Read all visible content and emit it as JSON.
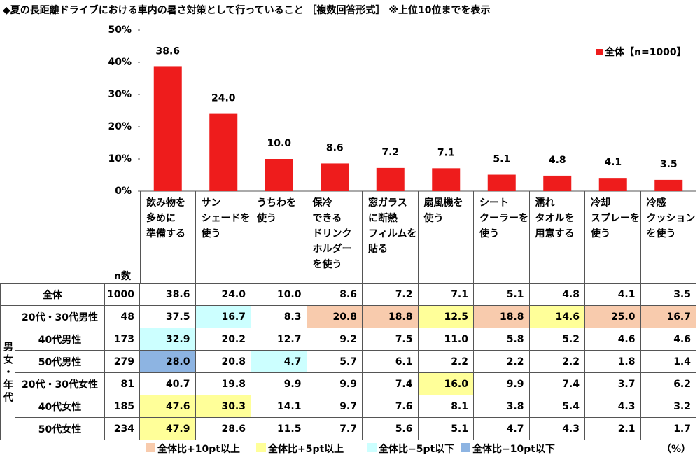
{
  "chart_data": {
    "type": "bar",
    "title": "◆夏の長距離ドライブにおける車内の暑さ対策として行っていること ［複数回答形式］ ※上位10位までを表示",
    "categories": [
      "飲み物を\n多めに\n準備する",
      "サン\nシェードを\n使う",
      "うちわを\n使う",
      "保冷\nできる\nドリンク\nホルダー\nを使う",
      "窓ガラス\nに断熱\nフィルムを\n貼る",
      "扇風機を\n使う",
      "シート\nクーラーを\n使う",
      "濡れ\nタオルを\n用意する",
      "冷却\nスプレーを\n使う",
      "冷感\nクッション\nを使う"
    ],
    "series": [
      {
        "name": "全体【n=1000】",
        "color": "#ee1c1c",
        "values": [
          38.6,
          24.0,
          10.0,
          8.6,
          7.2,
          7.1,
          5.1,
          4.8,
          4.1,
          3.5
        ],
        "value_labels": [
          "38.6",
          "24.0",
          "10.0",
          "8.6",
          "7.2",
          "7.1",
          "5.1",
          "4.8",
          "4.1",
          "3.5"
        ]
      }
    ],
    "ylim": [
      0,
      50
    ],
    "yticks": [
      {
        "value": 0,
        "label": "0%"
      },
      {
        "value": 10,
        "label": "10%"
      },
      {
        "value": 20,
        "label": "20%"
      },
      {
        "value": 30,
        "label": "30%"
      },
      {
        "value": 40,
        "label": "40%"
      },
      {
        "value": 50,
        "label": "50%"
      }
    ],
    "legend": "upper right"
  },
  "table": {
    "n_header": "n数",
    "group_label": "男女・年代",
    "total_row": {
      "label": "全体",
      "n": "1000"
    },
    "rows": [
      {
        "label": "20代・30代男性",
        "n": "48",
        "values": [
          "37.5",
          "16.7",
          "8.3",
          "20.8",
          "18.8",
          "12.5",
          "18.8",
          "14.6",
          "25.0",
          "16.7"
        ],
        "colors": [
          null,
          "#ccffff",
          null,
          "#f8cbad",
          "#f8cbad",
          "#ffff99",
          "#f8cbad",
          "#ffff99",
          "#f8cbad",
          "#f8cbad"
        ]
      },
      {
        "label": "40代男性",
        "n": "173",
        "values": [
          "32.9",
          "20.2",
          "12.7",
          "9.2",
          "7.5",
          "11.0",
          "5.8",
          "5.2",
          "4.6",
          "4.6"
        ],
        "colors": [
          "#ccffff",
          null,
          null,
          null,
          null,
          null,
          null,
          null,
          null,
          null
        ]
      },
      {
        "label": "50代男性",
        "n": "279",
        "values": [
          "28.0",
          "20.8",
          "4.7",
          "5.7",
          "6.1",
          "2.2",
          "2.2",
          "2.2",
          "1.8",
          "1.4"
        ],
        "colors": [
          "#8db4e2",
          null,
          "#ccffff",
          null,
          null,
          null,
          null,
          null,
          null,
          null
        ]
      },
      {
        "label": "20代・30代女性",
        "n": "81",
        "values": [
          "40.7",
          "19.8",
          "9.9",
          "9.9",
          "7.4",
          "16.0",
          "9.9",
          "7.4",
          "3.7",
          "6.2"
        ],
        "colors": [
          null,
          null,
          null,
          null,
          null,
          "#ffff99",
          null,
          null,
          null,
          null
        ]
      },
      {
        "label": "40代女性",
        "n": "185",
        "values": [
          "47.6",
          "30.3",
          "14.1",
          "9.7",
          "7.6",
          "8.1",
          "3.8",
          "5.4",
          "4.3",
          "3.2"
        ],
        "colors": [
          "#ffff99",
          "#ffff99",
          null,
          null,
          null,
          null,
          null,
          null,
          null,
          null
        ]
      },
      {
        "label": "50代女性",
        "n": "234",
        "values": [
          "47.9",
          "28.6",
          "11.5",
          "7.7",
          "5.6",
          "5.1",
          "4.7",
          "4.3",
          "2.1",
          "1.7"
        ],
        "colors": [
          "#ffff99",
          null,
          null,
          null,
          null,
          null,
          null,
          null,
          null,
          null
        ]
      }
    ],
    "legend": [
      {
        "color": "#f8cbad",
        "label": "全体比+10pt以上"
      },
      {
        "color": "#ffff99",
        "label": "全体比+5pt以上"
      },
      {
        "color": "#ccffff",
        "label": "全体比−5pt以下"
      },
      {
        "color": "#8db4e2",
        "label": "全体比−10pt以下"
      }
    ],
    "unit": "（%）"
  }
}
